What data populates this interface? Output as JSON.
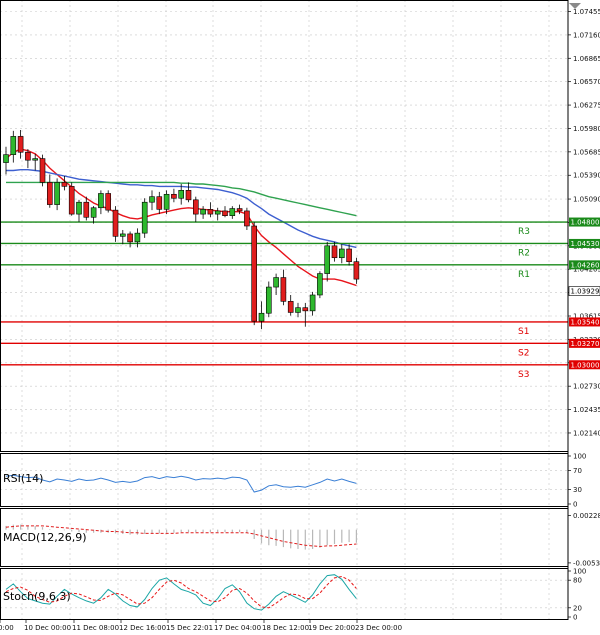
{
  "chart_data": [
    {
      "type": "candlestick",
      "title": "",
      "ylim": [
        1.019,
        1.076
      ],
      "y_ticks": [
        "1.07455",
        "1.07160",
        "1.06865",
        "1.06570",
        "1.06275",
        "1.05980",
        "1.05685",
        "1.05390",
        "1.05090",
        "1.04795",
        "1.04500",
        "1.04205",
        "1.03910",
        "1.03615",
        "1.03320",
        "1.03025",
        "1.02730",
        "1.02435",
        "1.02140"
      ],
      "x_ticks": [
        "0:00",
        "10 Dec 00:00",
        "11 Dec 08:00",
        "12 Dec 16:00",
        "15 Dec 22:01",
        "17 Dec 04:00",
        "18 Dec 12:00",
        "19 Dec 20:00",
        "23 Dec 00:00"
      ],
      "candles": [
        {
          "o": 1.0555,
          "h": 1.0575,
          "l": 1.054,
          "c": 1.0565
        },
        {
          "o": 1.0565,
          "h": 1.0595,
          "l": 1.0555,
          "c": 1.0588
        },
        {
          "o": 1.0588,
          "h": 1.0596,
          "l": 1.056,
          "c": 1.0568
        },
        {
          "o": 1.0568,
          "h": 1.0572,
          "l": 1.0548,
          "c": 1.0558
        },
        {
          "o": 1.0558,
          "h": 1.0566,
          "l": 1.0545,
          "c": 1.056
        },
        {
          "o": 1.056,
          "h": 1.0565,
          "l": 1.0525,
          "c": 1.053
        },
        {
          "o": 1.053,
          "h": 1.054,
          "l": 1.0498,
          "c": 1.0502
        },
        {
          "o": 1.0502,
          "h": 1.0535,
          "l": 1.0495,
          "c": 1.053
        },
        {
          "o": 1.053,
          "h": 1.0538,
          "l": 1.052,
          "c": 1.0525
        },
        {
          "o": 1.0525,
          "h": 1.053,
          "l": 1.0488,
          "c": 1.049
        },
        {
          "o": 1.049,
          "h": 1.0508,
          "l": 1.048,
          "c": 1.0505
        },
        {
          "o": 1.0505,
          "h": 1.0512,
          "l": 1.0482,
          "c": 1.0486
        },
        {
          "o": 1.0486,
          "h": 1.05,
          "l": 1.0478,
          "c": 1.0498
        },
        {
          "o": 1.0498,
          "h": 1.052,
          "l": 1.049,
          "c": 1.0516
        },
        {
          "o": 1.0516,
          "h": 1.052,
          "l": 1.0492,
          "c": 1.0495
        },
        {
          "o": 1.0495,
          "h": 1.05,
          "l": 1.0455,
          "c": 1.0462
        },
        {
          "o": 1.0462,
          "h": 1.047,
          "l": 1.0452,
          "c": 1.0465
        },
        {
          "o": 1.0465,
          "h": 1.0468,
          "l": 1.0448,
          "c": 1.0455
        },
        {
          "o": 1.0455,
          "h": 1.0472,
          "l": 1.0448,
          "c": 1.0466
        },
        {
          "o": 1.0466,
          "h": 1.051,
          "l": 1.046,
          "c": 1.0505
        },
        {
          "o": 1.0505,
          "h": 1.052,
          "l": 1.0495,
          "c": 1.0512
        },
        {
          "o": 1.0512,
          "h": 1.0518,
          "l": 1.049,
          "c": 1.0496
        },
        {
          "o": 1.0496,
          "h": 1.052,
          "l": 1.049,
          "c": 1.0515
        },
        {
          "o": 1.0515,
          "h": 1.0522,
          "l": 1.0505,
          "c": 1.051
        },
        {
          "o": 1.051,
          "h": 1.0528,
          "l": 1.0502,
          "c": 1.052
        },
        {
          "o": 1.052,
          "h": 1.053,
          "l": 1.0505,
          "c": 1.0508
        },
        {
          "o": 1.0508,
          "h": 1.0512,
          "l": 1.048,
          "c": 1.049
        },
        {
          "o": 1.049,
          "h": 1.05,
          "l": 1.0484,
          "c": 1.0496
        },
        {
          "o": 1.0496,
          "h": 1.0505,
          "l": 1.0486,
          "c": 1.049
        },
        {
          "o": 1.049,
          "h": 1.0498,
          "l": 1.0482,
          "c": 1.0494
        },
        {
          "o": 1.0494,
          "h": 1.05,
          "l": 1.0486,
          "c": 1.0488
        },
        {
          "o": 1.0488,
          "h": 1.05,
          "l": 1.0484,
          "c": 1.0497
        },
        {
          "o": 1.0497,
          "h": 1.0502,
          "l": 1.049,
          "c": 1.0494
        },
        {
          "o": 1.0494,
          "h": 1.0498,
          "l": 1.047,
          "c": 1.0475
        },
        {
          "o": 1.0475,
          "h": 1.048,
          "l": 1.035,
          "c": 1.0355
        },
        {
          "o": 1.0355,
          "h": 1.038,
          "l": 1.0345,
          "c": 1.0365
        },
        {
          "o": 1.0365,
          "h": 1.0405,
          "l": 1.036,
          "c": 1.0398
        },
        {
          "o": 1.0398,
          "h": 1.0415,
          "l": 1.0388,
          "c": 1.041
        },
        {
          "o": 1.041,
          "h": 1.042,
          "l": 1.0375,
          "c": 1.038
        },
        {
          "o": 1.038,
          "h": 1.0388,
          "l": 1.0362,
          "c": 1.0366
        },
        {
          "o": 1.0366,
          "h": 1.0378,
          "l": 1.036,
          "c": 1.0372
        },
        {
          "o": 1.0372,
          "h": 1.0378,
          "l": 1.0348,
          "c": 1.0368
        },
        {
          "o": 1.0368,
          "h": 1.0392,
          "l": 1.0362,
          "c": 1.0388
        },
        {
          "o": 1.0388,
          "h": 1.0418,
          "l": 1.0384,
          "c": 1.0415
        },
        {
          "o": 1.0415,
          "h": 1.0455,
          "l": 1.0405,
          "c": 1.045
        },
        {
          "o": 1.045,
          "h": 1.0455,
          "l": 1.043,
          "c": 1.0435
        },
        {
          "o": 1.0435,
          "h": 1.0452,
          "l": 1.0428,
          "c": 1.0446
        },
        {
          "o": 1.0446,
          "h": 1.0452,
          "l": 1.0425,
          "c": 1.043
        },
        {
          "o": 1.043,
          "h": 1.0435,
          "l": 1.0402,
          "c": 1.0408
        }
      ],
      "moving_averages": [
        {
          "color": "#e8141b",
          "values": [
            1.056,
            1.0568,
            1.0572,
            1.057,
            1.0566,
            1.0558,
            1.0548,
            1.054,
            1.0532,
            1.0524,
            1.0516,
            1.051,
            1.0504,
            1.05,
            1.0497,
            1.0492,
            1.0488,
            1.0485,
            1.0484,
            1.0486,
            1.0489,
            1.0491,
            1.0493,
            1.0495,
            1.0497,
            1.0498,
            1.0497,
            1.0496,
            1.0495,
            1.0494,
            1.0493,
            1.0493,
            1.0493,
            1.049,
            1.0475,
            1.0463,
            1.0455,
            1.0448,
            1.044,
            1.0432,
            1.0424,
            1.0418,
            1.0412,
            1.0408,
            1.0408,
            1.0408,
            1.0406,
            1.0403,
            1.04
          ]
        },
        {
          "color": "#3d5fd0",
          "values": [
            1.0545,
            1.0545,
            1.0546,
            1.0546,
            1.0545,
            1.0544,
            1.0542,
            1.054,
            1.0538,
            1.0536,
            1.0534,
            1.0533,
            1.0532,
            1.0531,
            1.053,
            1.0529,
            1.0528,
            1.0527,
            1.0527,
            1.0526,
            1.0526,
            1.0525,
            1.0525,
            1.0525,
            1.0525,
            1.0524,
            1.0524,
            1.0523,
            1.0522,
            1.0521,
            1.0519,
            1.0517,
            1.0514,
            1.051,
            1.0503,
            1.0497,
            1.049,
            1.0485,
            1.048,
            1.0475,
            1.047,
            1.0466,
            1.0462,
            1.0459,
            1.0457,
            1.0455,
            1.0452,
            1.045,
            1.0448
          ]
        },
        {
          "color": "#2fa24f",
          "values": [
            1.053,
            1.053,
            1.053,
            1.053,
            1.053,
            1.053,
            1.053,
            1.053,
            1.053,
            1.053,
            1.053,
            1.053,
            1.053,
            1.053,
            1.053,
            1.053,
            1.053,
            1.053,
            1.053,
            1.053,
            1.053,
            1.053,
            1.053,
            1.053,
            1.0529,
            1.0529,
            1.0528,
            1.0528,
            1.0527,
            1.0526,
            1.0525,
            1.0523,
            1.0522,
            1.052,
            1.0518,
            1.0515,
            1.0512,
            1.051,
            1.0508,
            1.0506,
            1.0504,
            1.0502,
            1.05,
            1.0498,
            1.0496,
            1.0494,
            1.0492,
            1.049,
            1.0488
          ]
        }
      ],
      "levels": [
        {
          "label": "R3",
          "value": 1.048,
          "price_label": "1.04800",
          "color": "#1a8a1a"
        },
        {
          "label": "R2",
          "value": 1.0453,
          "price_label": "1.04530",
          "color": "#1a8a1a"
        },
        {
          "label": "R1",
          "value": 1.0426,
          "price_label": "1.04260",
          "color": "#1a8a1a"
        },
        {
          "label": "S1",
          "value": 1.0354,
          "price_label": "1.03540",
          "color": "#e00000"
        },
        {
          "label": "S2",
          "value": 1.0327,
          "price_label": "1.03270",
          "color": "#e00000"
        },
        {
          "label": "S3",
          "value": 1.03,
          "price_label": "1.03000",
          "color": "#e00000"
        }
      ],
      "current_price": {
        "value": 1.03929,
        "label": "1.03929"
      }
    },
    {
      "type": "line",
      "title": "RSI(14)",
      "ylim": [
        0,
        100
      ],
      "y_ticks": [
        "100",
        "70",
        "30",
        "0"
      ],
      "values": [
        58,
        60,
        57,
        55,
        56,
        50,
        46,
        52,
        50,
        47,
        52,
        49,
        50,
        54,
        50,
        45,
        47,
        45,
        48,
        55,
        57,
        53,
        57,
        55,
        58,
        55,
        50,
        53,
        52,
        54,
        52,
        56,
        55,
        50,
        25,
        29,
        38,
        40,
        36,
        35,
        37,
        35,
        40,
        45,
        52,
        48,
        52,
        47,
        43
      ]
    },
    {
      "type": "bar",
      "title": "MACD(12,26,9)",
      "ylim": [
        -0.00535,
        0.00283
      ],
      "y_ticks": [
        "0.002283",
        "-0.005335"
      ],
      "values": [
        0.0006,
        0.0008,
        0.0008,
        0.0007,
        0.0006,
        0.0004,
        0.0001,
        0.0,
        -0.0001,
        -0.0003,
        -0.0004,
        -0.0005,
        -0.0005,
        -0.0005,
        -0.0005,
        -0.0006,
        -0.0007,
        -0.0008,
        -0.0008,
        -0.0007,
        -0.0006,
        -0.0006,
        -0.0005,
        -0.0005,
        -0.0004,
        -0.0004,
        -0.0004,
        -0.0004,
        -0.0004,
        -0.0004,
        -0.0004,
        -0.0004,
        -0.0004,
        -0.0005,
        -0.0015,
        -0.0022,
        -0.0025,
        -0.0026,
        -0.0028,
        -0.003,
        -0.0031,
        -0.0032,
        -0.0031,
        -0.0029,
        -0.0025,
        -0.0023,
        -0.0021,
        -0.002,
        -0.0021
      ],
      "signal": [
        0.0004,
        0.0005,
        0.0006,
        0.0006,
        0.0006,
        0.0006,
        0.0005,
        0.0004,
        0.0003,
        0.0002,
        0.0001,
        0.0,
        -0.0001,
        -0.0002,
        -0.0003,
        -0.0003,
        -0.0004,
        -0.0005,
        -0.0005,
        -0.0006,
        -0.0006,
        -0.0006,
        -0.0006,
        -0.0006,
        -0.0005,
        -0.0005,
        -0.0005,
        -0.0005,
        -0.0005,
        -0.0005,
        -0.0005,
        -0.0005,
        -0.0005,
        -0.0005,
        -0.0007,
        -0.001,
        -0.0013,
        -0.0016,
        -0.0019,
        -0.0021,
        -0.0023,
        -0.0025,
        -0.0026,
        -0.0027,
        -0.0026,
        -0.0026,
        -0.0025,
        -0.0024,
        -0.0023
      ]
    },
    {
      "type": "line",
      "title": "Stoch(9,6,3)",
      "ylim": [
        0,
        100
      ],
      "y_ticks": [
        "100",
        "80",
        "20",
        "0"
      ],
      "series": [
        {
          "color": "#1aa6a6",
          "values": [
            60,
            72,
            55,
            40,
            35,
            30,
            28,
            45,
            60,
            50,
            42,
            35,
            30,
            42,
            60,
            50,
            35,
            25,
            22,
            38,
            62,
            80,
            85,
            72,
            60,
            55,
            48,
            30,
            25,
            40,
            62,
            70,
            55,
            30,
            18,
            15,
            28,
            45,
            55,
            48,
            40,
            32,
            48,
            72,
            90,
            92,
            82,
            60,
            40
          ]
        },
        {
          "color": "#e81818",
          "values": [
            55,
            62,
            65,
            58,
            45,
            38,
            32,
            35,
            45,
            52,
            50,
            44,
            37,
            36,
            45,
            52,
            48,
            38,
            28,
            30,
            42,
            60,
            76,
            80,
            74,
            62,
            55,
            45,
            35,
            33,
            42,
            58,
            62,
            52,
            35,
            22,
            20,
            30,
            42,
            50,
            48,
            40,
            40,
            52,
            70,
            85,
            88,
            80,
            62
          ]
        }
      ]
    }
  ]
}
